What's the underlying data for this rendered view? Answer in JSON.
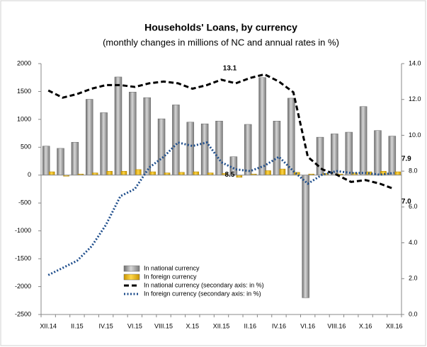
{
  "chart_data": {
    "type": "bar",
    "title": "Households' Loans, by currency",
    "subtitle": "(monthly changes in millions of NC and annual rates in %)",
    "categories": [
      "XII.14",
      null,
      "II.15",
      null,
      "IV.15",
      null,
      "VI.15",
      null,
      "VIII.15",
      null,
      "X.15",
      null,
      "XII.15",
      null,
      "II.16",
      null,
      "IV.16",
      null,
      "VI.16",
      null,
      "VIII.16",
      null,
      "X.16",
      null,
      "XII.16"
    ],
    "series": [
      {
        "name": "In national currency",
        "type": "bar",
        "color": "#9a9a9a",
        "values": [
          520,
          480,
          590,
          1360,
          1120,
          1760,
          1490,
          1390,
          1010,
          1260,
          950,
          920,
          970,
          330,
          910,
          1750,
          970,
          1380,
          -2200,
          680,
          740,
          770,
          1230,
          800,
          700
        ]
      },
      {
        "name": "In foreign currency",
        "type": "bar",
        "color": "#f2b800",
        "values": [
          60,
          -20,
          20,
          40,
          70,
          70,
          100,
          60,
          40,
          50,
          60,
          40,
          30,
          -40,
          20,
          80,
          110,
          50,
          20,
          30,
          20,
          40,
          60,
          70,
          60
        ]
      },
      {
        "name": "In national currency (secondary axis: in %)",
        "type": "line",
        "axis": "y2",
        "color": "#000000",
        "dash": "7,4",
        "values": [
          12.5,
          12.1,
          12.3,
          12.6,
          12.8,
          12.8,
          12.7,
          12.9,
          13.0,
          12.9,
          12.6,
          12.8,
          13.1,
          12.9,
          13.2,
          13.4,
          13.0,
          12.4,
          8.8,
          8.1,
          7.8,
          7.4,
          7.5,
          7.3,
          7.0
        ],
        "value_labels": [
          null,
          null,
          null,
          null,
          null,
          null,
          null,
          null,
          null,
          null,
          null,
          null,
          "13.1",
          null,
          null,
          null,
          null,
          null,
          null,
          null,
          null,
          null,
          null,
          null,
          "7.0"
        ]
      },
      {
        "name": "In foreign currency (secondary axis: in %)",
        "type": "line",
        "axis": "y2",
        "color": "#1f4e8c",
        "dash": "2,2.5",
        "values": [
          2.2,
          2.6,
          3.0,
          3.8,
          5.0,
          6.6,
          7.0,
          8.2,
          8.8,
          9.6,
          9.4,
          9.6,
          8.5,
          8.1,
          8.0,
          8.3,
          8.8,
          8.0,
          7.3,
          7.8,
          8.0,
          7.9,
          7.9,
          7.8,
          7.9
        ],
        "value_labels": [
          null,
          null,
          null,
          null,
          null,
          null,
          null,
          null,
          null,
          null,
          null,
          null,
          "8.5",
          null,
          null,
          null,
          null,
          null,
          null,
          null,
          null,
          null,
          null,
          null,
          "7.9"
        ]
      }
    ],
    "ylim": [
      -2500,
      2000
    ],
    "yticks": [
      -2500,
      -2000,
      -1500,
      -1000,
      -500,
      0,
      500,
      1000,
      1500,
      2000
    ],
    "y2lim": [
      0,
      14
    ],
    "y2ticks": [
      {
        "value": 0,
        "label": "0.0"
      },
      {
        "value": 2,
        "label": "2.0"
      },
      {
        "value": 4,
        "label": "4.0"
      },
      {
        "value": 6,
        "label": "6.0"
      },
      {
        "value": 8,
        "label": "8.0"
      },
      {
        "value": 10,
        "label": "10.0"
      },
      {
        "value": 12,
        "label": "12.0"
      },
      {
        "value": 14,
        "label": "14.0"
      }
    ],
    "legend": "lower left"
  }
}
